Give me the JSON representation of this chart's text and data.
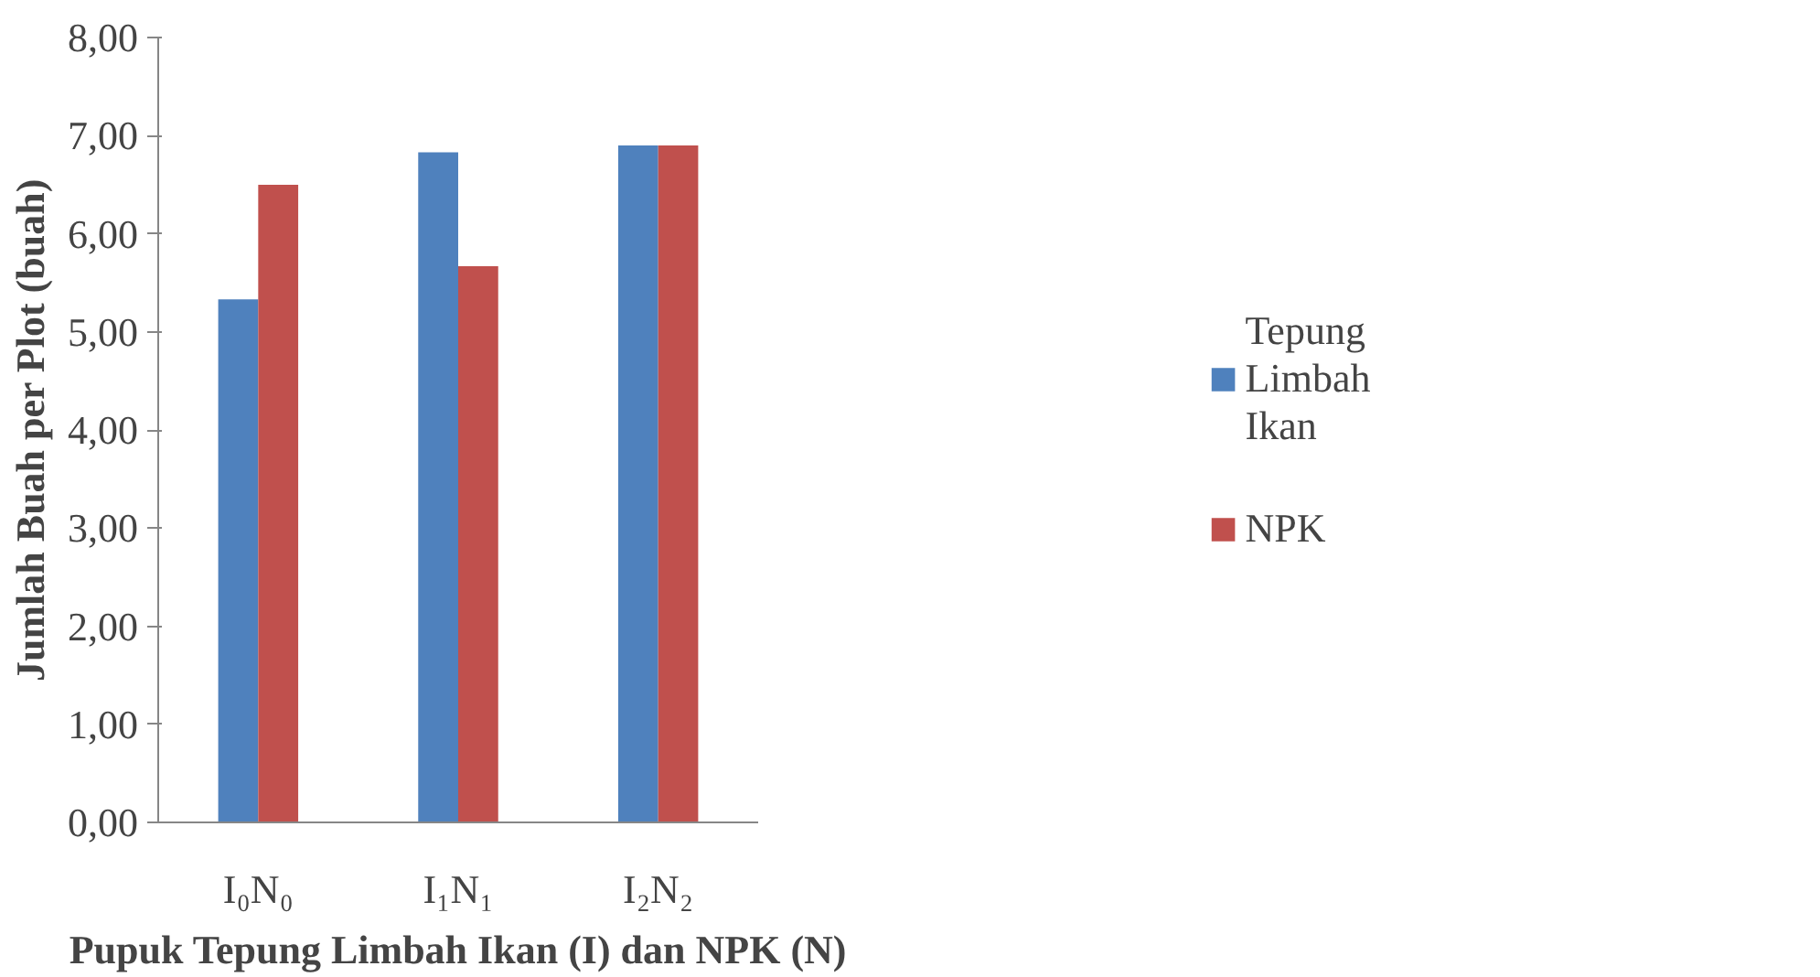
{
  "chart_data": {
    "type": "bar",
    "xlabel": "Pupuk Tepung Limbah Ikan (I) dan NPK (N)",
    "ylabel": "Jumlah Buah per Plot (buah)",
    "categories": [
      "I₀N₀",
      "I₁N₁",
      "I₂N₂"
    ],
    "series": [
      {
        "name": "Tepung Limbah Ikan",
        "color": "#4f81bd",
        "values": [
          5.33,
          6.83,
          6.9
        ]
      },
      {
        "name": "NPK",
        "color": "#c0504d",
        "values": [
          6.5,
          5.67,
          6.9
        ]
      }
    ],
    "ylim": [
      0,
      8
    ],
    "yticks": [
      {
        "value": 0,
        "label": "0,00"
      },
      {
        "value": 1,
        "label": "1,00"
      },
      {
        "value": 2,
        "label": "2,00"
      },
      {
        "value": 3,
        "label": "3,00"
      },
      {
        "value": 4,
        "label": "4,00"
      },
      {
        "value": 5,
        "label": "5,00"
      },
      {
        "value": 6,
        "label": "6,00"
      },
      {
        "value": 7,
        "label": "7,00"
      },
      {
        "value": 8,
        "label": "8,00"
      }
    ],
    "grid": false,
    "legend": "right"
  }
}
